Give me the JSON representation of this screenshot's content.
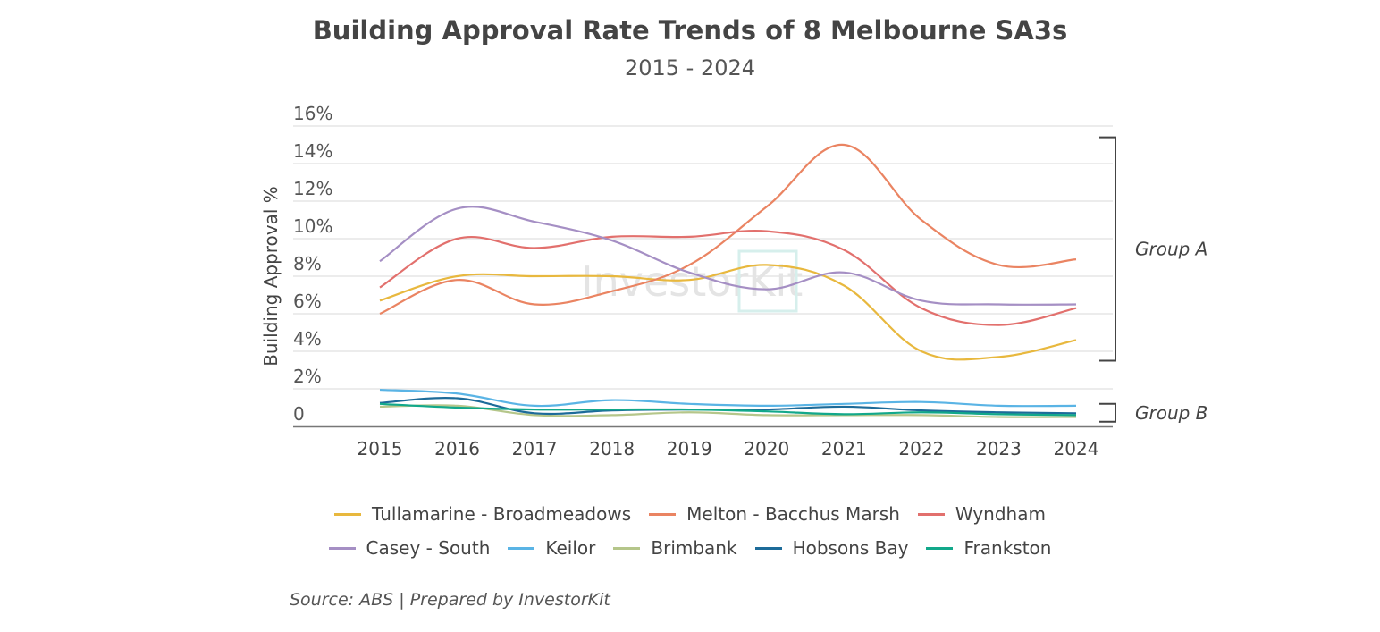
{
  "chart_data": {
    "type": "line",
    "title": "Building Approval Rate Trends of 8 Melbourne SA3s",
    "subtitle": "2015 - 2024",
    "xlabel": "",
    "ylabel": "Building Approval %",
    "x": [
      "2015",
      "2016",
      "2017",
      "2018",
      "2019",
      "2020",
      "2021",
      "2022",
      "2023",
      "2024"
    ],
    "ylim": [
      0,
      16
    ],
    "yticks": [
      "0",
      "2%",
      "4%",
      "6%",
      "8%",
      "10%",
      "12%",
      "14%",
      "16%"
    ],
    "grid": true,
    "legend_position": "bottom",
    "series": [
      {
        "name": "Tullamarine - Broadmeadows",
        "color": "#e8b83e",
        "values": [
          6.7,
          8.0,
          8.0,
          8.0,
          7.8,
          8.6,
          7.5,
          4.0,
          3.7,
          4.6
        ]
      },
      {
        "name": "Melton - Bacchus Marsh",
        "color": "#ea8462",
        "values": [
          6.0,
          7.8,
          6.5,
          7.2,
          8.6,
          11.7,
          15.0,
          11.0,
          8.6,
          8.9
        ]
      },
      {
        "name": "Wyndham",
        "color": "#e2706d",
        "values": [
          7.4,
          10.0,
          9.5,
          10.1,
          10.1,
          10.4,
          9.4,
          6.3,
          5.4,
          6.3
        ]
      },
      {
        "name": "Casey - South",
        "color": "#a58fc4",
        "values": [
          8.8,
          11.6,
          10.9,
          9.9,
          8.2,
          7.3,
          8.2,
          6.7,
          6.5,
          6.5
        ]
      },
      {
        "name": "Keilor",
        "color": "#5ab4e5",
        "values": [
          1.95,
          1.75,
          1.1,
          1.4,
          1.2,
          1.1,
          1.2,
          1.3,
          1.1,
          1.1
        ]
      },
      {
        "name": "Brimbank",
        "color": "#b5c68a",
        "values": [
          1.05,
          1.1,
          0.6,
          0.6,
          0.75,
          0.6,
          0.6,
          0.6,
          0.5,
          0.5
        ]
      },
      {
        "name": "Hobsons Bay",
        "color": "#1d6b99",
        "values": [
          1.25,
          1.5,
          0.7,
          0.85,
          0.9,
          0.9,
          1.05,
          0.85,
          0.75,
          0.7
        ]
      },
      {
        "name": "Frankston",
        "color": "#12a88a",
        "values": [
          1.2,
          1.0,
          0.9,
          0.9,
          0.9,
          0.8,
          0.65,
          0.75,
          0.65,
          0.6
        ]
      }
    ],
    "annotations": [
      {
        "label": "Group A",
        "range": [
          3.5,
          15.4
        ]
      },
      {
        "label": "Group B",
        "range": [
          0.25,
          1.2
        ]
      }
    ],
    "watermark": "InvestorKit"
  },
  "source": "Source: ABS | Prepared by InvestorKit"
}
